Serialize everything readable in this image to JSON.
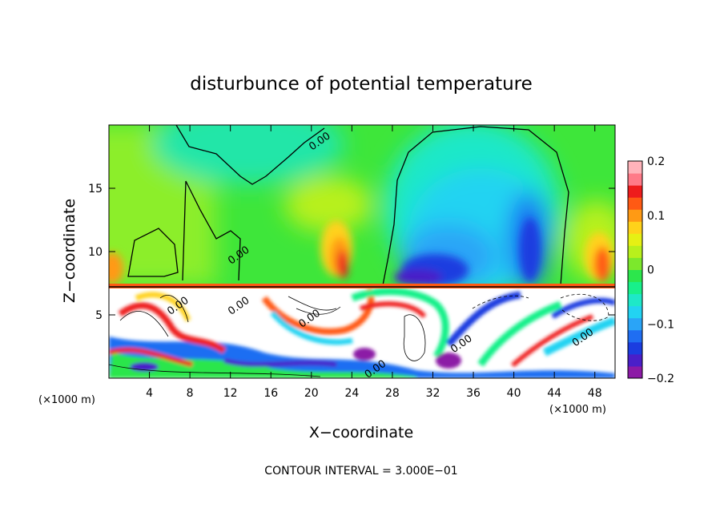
{
  "chart_data": {
    "type": "heatmap",
    "title": "disturbunce of potential temperature",
    "xlabel": "X−coordinate",
    "ylabel": "Z−coordinate",
    "x_unit_label": "(×1000 m)",
    "y_unit_label": "(×1000 m)",
    "xlim": [
      0,
      50
    ],
    "ylim": [
      0,
      20
    ],
    "x_ticks": [
      4,
      8,
      12,
      16,
      20,
      24,
      28,
      32,
      36,
      40,
      44,
      48
    ],
    "y_ticks": [
      5,
      10,
      15
    ],
    "colorbar": {
      "min": -0.2,
      "max": 0.2,
      "tick_values": [
        0.2,
        0.1,
        0,
        -0.1,
        -0.2
      ],
      "tick_labels": [
        "0.2",
        "0.1",
        "0",
        "−0.1",
        "−0.2"
      ],
      "colors": [
        "#8c1aa6",
        "#4a1fc8",
        "#1b3de0",
        "#1f6ef2",
        "#2aa4f7",
        "#22d3f2",
        "#1ee8c8",
        "#18f08a",
        "#2ce64c",
        "#7ce82c",
        "#b8f01c",
        "#e6f014",
        "#ffd21a",
        "#ff9a14",
        "#ff5a14",
        "#ee1c1c",
        "#ff7a88",
        "#ffb3ba"
      ]
    },
    "contour_labels": [
      {
        "text": "0.00",
        "x": 21.0,
        "z": 18.5
      },
      {
        "text": "0.00",
        "x": 13.0,
        "z": 9.5
      },
      {
        "text": "0.00",
        "x": 7.0,
        "z": 5.5
      },
      {
        "text": "0.00",
        "x": 13.0,
        "z": 5.5
      },
      {
        "text": "0.00",
        "x": 20.0,
        "z": 4.5
      },
      {
        "text": "0.00",
        "x": 26.5,
        "z": 0.5
      },
      {
        "text": "0.00",
        "x": 35.0,
        "z": 2.5
      },
      {
        "text": "0.00",
        "x": 47.0,
        "z": 3.0
      }
    ],
    "footer": "CONTOUR INTERVAL = 3.000E−01"
  }
}
